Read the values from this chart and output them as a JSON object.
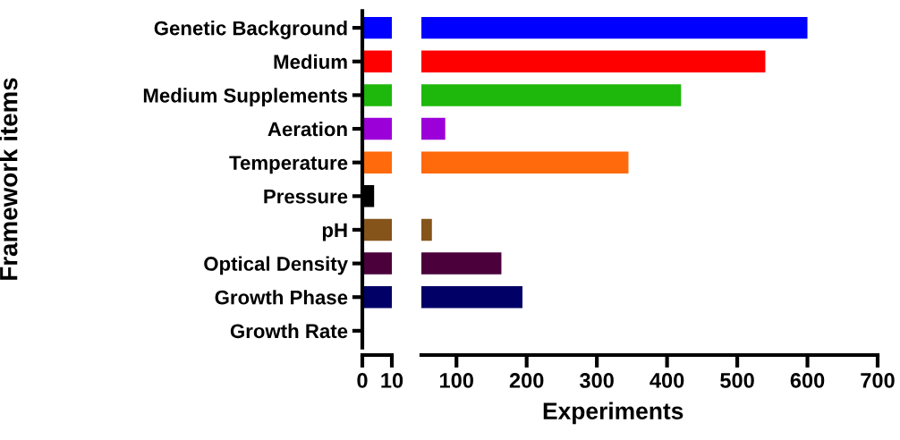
{
  "chart_data": [
    {
      "type": "bar",
      "orientation": "horizontal",
      "ylabel": "Framework items",
      "categories": [
        "Genetic Background",
        "Medium",
        "Medium Supplements",
        "Aeration",
        "Temperature",
        "Pressure",
        "pH",
        "Optical Density",
        "Growth Phase",
        "Growth Rate"
      ],
      "values": [
        10,
        10,
        10,
        10,
        10,
        4,
        10,
        10,
        10,
        0
      ],
      "colors": [
        "#0000ff",
        "#ff0000",
        "#1db80b",
        "#9b00d9",
        "#ff6a0c",
        "#000000",
        "#85541a",
        "#4b003c",
        "#000066",
        "#000000"
      ],
      "xlim": [
        0,
        10
      ],
      "xticks": [
        0,
        10
      ],
      "grid": false,
      "legend": false
    },
    {
      "type": "bar",
      "orientation": "horizontal",
      "xlabel": "Experiments",
      "tick_labels": "x",
      "categories": [
        null,
        null,
        null,
        null,
        null,
        null,
        null,
        null,
        null,
        null
      ],
      "values": [
        600,
        540,
        420,
        84,
        345,
        null,
        65,
        164,
        194,
        null
      ],
      "colors": [
        "#0000ff",
        "#ff0000",
        "#1db80b",
        "#9b00d9",
        "#ff6a0c",
        "#000000",
        "#85541a",
        "#4b003c",
        "#000066",
        "#000000"
      ],
      "xlim": [
        50,
        700
      ],
      "xticks": [
        100,
        200,
        300,
        400,
        500,
        600,
        700
      ],
      "grid": false,
      "legend": false
    }
  ]
}
